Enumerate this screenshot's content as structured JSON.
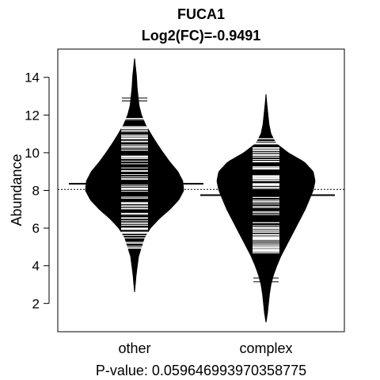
{
  "chart_data": {
    "type": "beanplot",
    "title": "FUCA1",
    "subtitle": "Log2(FC)=-0.9491",
    "ylabel": "Abundance",
    "xlabel": "P-value: 0.059646993970358775",
    "ylim": [
      0.5,
      15.5
    ],
    "yticks": [
      2,
      4,
      6,
      8,
      10,
      12,
      14
    ],
    "overall_mean": 8.05,
    "categories": [
      "other",
      "complex"
    ],
    "beans": [
      {
        "name": "other",
        "mean": 8.35,
        "min": 2.6,
        "max": 15.0,
        "density": [
          [
            2.6,
            0.0
          ],
          [
            3.5,
            0.03
          ],
          [
            4.5,
            0.08
          ],
          [
            5.5,
            0.2
          ],
          [
            6.0,
            0.32
          ],
          [
            6.5,
            0.5
          ],
          [
            7.0,
            0.72
          ],
          [
            7.5,
            0.9
          ],
          [
            8.0,
            1.0
          ],
          [
            8.5,
            0.98
          ],
          [
            9.0,
            0.88
          ],
          [
            9.5,
            0.72
          ],
          [
            10.0,
            0.58
          ],
          [
            10.5,
            0.45
          ],
          [
            11.0,
            0.33
          ],
          [
            11.5,
            0.22
          ],
          [
            12.0,
            0.14
          ],
          [
            12.5,
            0.09
          ],
          [
            13.0,
            0.07
          ],
          [
            13.5,
            0.05
          ],
          [
            14.0,
            0.04
          ],
          [
            14.5,
            0.02
          ],
          [
            15.0,
            0.0
          ]
        ]
      },
      {
        "name": "complex",
        "mean": 7.75,
        "min": 1.0,
        "max": 13.1,
        "density": [
          [
            1.0,
            0.0
          ],
          [
            1.5,
            0.03
          ],
          [
            2.0,
            0.05
          ],
          [
            2.5,
            0.07
          ],
          [
            3.0,
            0.1
          ],
          [
            3.5,
            0.15
          ],
          [
            4.0,
            0.22
          ],
          [
            4.5,
            0.3
          ],
          [
            5.0,
            0.4
          ],
          [
            5.5,
            0.5
          ],
          [
            6.0,
            0.6
          ],
          [
            6.5,
            0.7
          ],
          [
            7.0,
            0.8
          ],
          [
            7.5,
            0.88
          ],
          [
            8.0,
            0.96
          ],
          [
            8.5,
            1.0
          ],
          [
            9.0,
            0.96
          ],
          [
            9.5,
            0.78
          ],
          [
            10.0,
            0.45
          ],
          [
            10.5,
            0.2
          ],
          [
            11.0,
            0.1
          ],
          [
            11.5,
            0.06
          ],
          [
            12.0,
            0.04
          ],
          [
            12.5,
            0.02
          ],
          [
            13.1,
            0.0
          ]
        ]
      }
    ]
  }
}
